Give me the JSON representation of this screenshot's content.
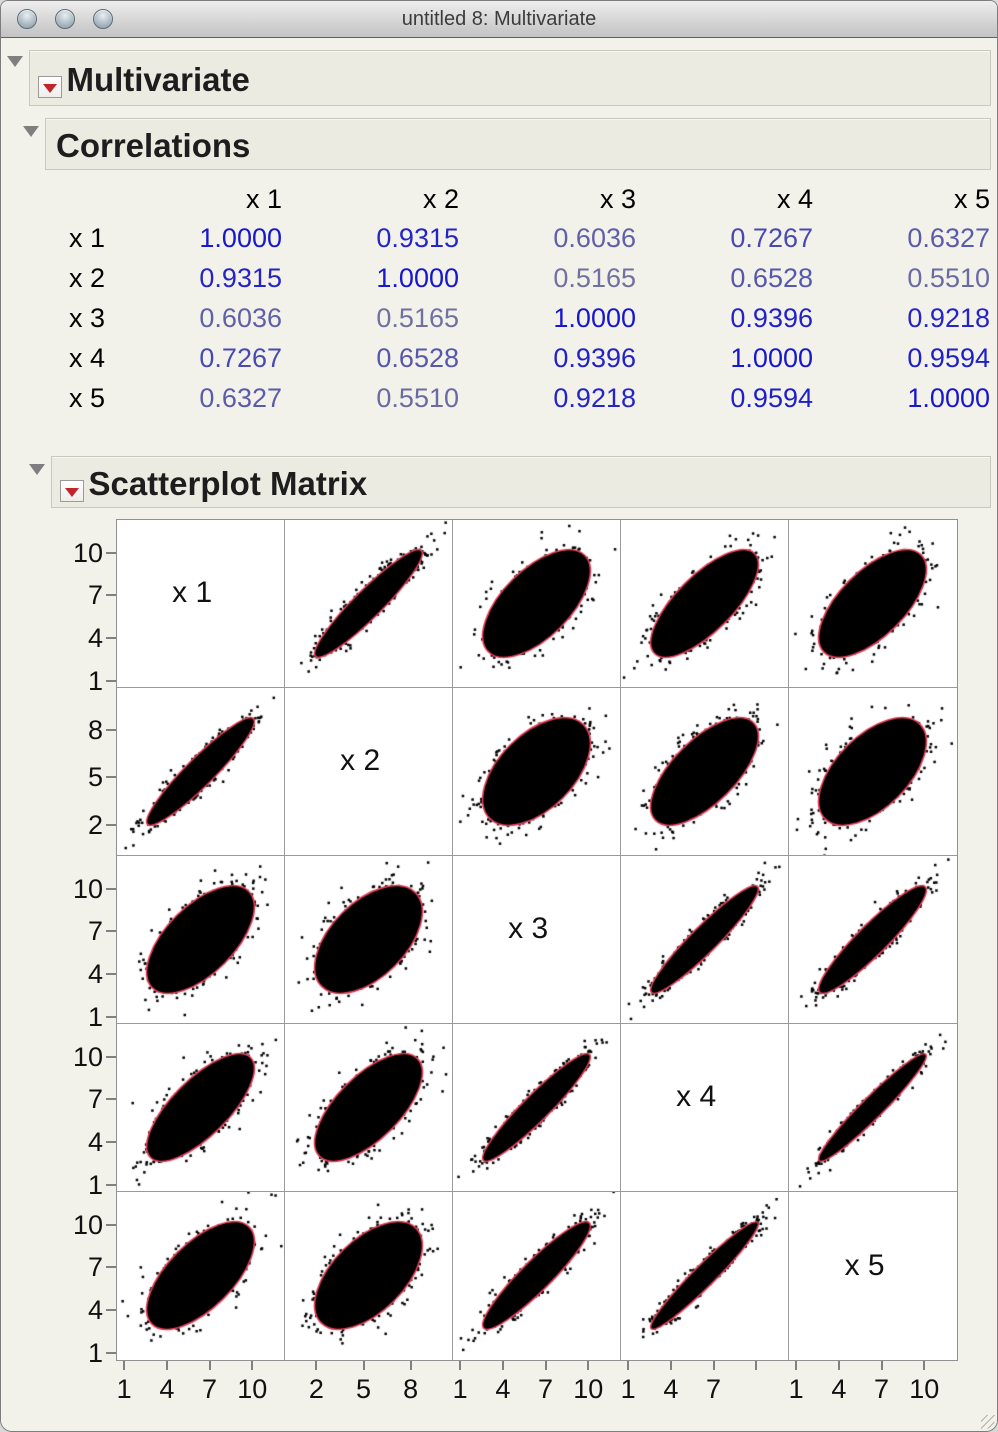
{
  "window": {
    "title": "untitled 8: Multivariate",
    "traffic_light_buttons": [
      "close",
      "minimize",
      "zoom"
    ]
  },
  "sections": {
    "multivariate": {
      "label": "Multivariate",
      "has_red_triangle_menu": true
    },
    "correlations": {
      "label": "Correlations",
      "has_red_triangle_menu": false
    },
    "scatterplot_matrix": {
      "label": "Scatterplot Matrix",
      "has_red_triangle_menu": true
    }
  },
  "icons": {
    "disclosure_triangle_color": "#7f7f7f",
    "red_triangle_menu_color": "#c2242c"
  },
  "chart_data": [
    {
      "type": "table",
      "title": "Correlations",
      "row_labels": [
        "x 1",
        "x 2",
        "x 3",
        "x 4",
        "x 5"
      ],
      "col_labels": [
        "x 1",
        "x 2",
        "x 3",
        "x 4",
        "x 5"
      ],
      "values": [
        [
          "1.0000",
          "0.9315",
          "0.6036",
          "0.7267",
          "0.6327"
        ],
        [
          "0.9315",
          "1.0000",
          "0.5165",
          "0.6528",
          "0.5510"
        ],
        [
          "0.6036",
          "0.5165",
          "1.0000",
          "0.9396",
          "0.9218"
        ],
        [
          "0.7267",
          "0.6528",
          "0.9396",
          "1.0000",
          "0.9594"
        ],
        [
          "0.6327",
          "0.5510",
          "0.9218",
          "0.9594",
          "1.0000"
        ]
      ],
      "value_color_scale": {
        "r_at_0_5": "#73739f",
        "r_at_1_0": "#1717ce"
      }
    },
    {
      "type": "scatter",
      "title": "Scatterplot Matrix",
      "layout": "5x5 matrix, diagonal cells show variable names, legend off, grid off",
      "variables": [
        "x 1",
        "x 2",
        "x 3",
        "x 4",
        "x 5"
      ],
      "correlations": [
        [
          1.0,
          0.9315,
          0.6036,
          0.7267,
          0.6327
        ],
        [
          0.9315,
          1.0,
          0.5165,
          0.6528,
          0.551
        ],
        [
          0.6036,
          0.5165,
          1.0,
          0.9396,
          0.9218
        ],
        [
          0.7267,
          0.6528,
          0.9396,
          1.0,
          0.9594
        ],
        [
          0.6327,
          0.551,
          0.9218,
          0.9594,
          1.0
        ]
      ],
      "cell_content": "dense black point cloud (bivariate normal) with red 95% density ellipse",
      "point_color": "#000000",
      "point_style": "small black squares",
      "ellipse_color": "#e63b55",
      "axes": [
        {
          "variable": "x 1",
          "domain": [
            0.5,
            12.3
          ],
          "ticks": [
            1,
            4,
            7,
            10
          ],
          "x_tick_labels": [
            "1",
            "4",
            "7",
            "10"
          ],
          "y_tick_labels": [
            "1",
            "4",
            "7",
            "10"
          ]
        },
        {
          "variable": "x 2",
          "domain": [
            0.0,
            10.7
          ],
          "ticks": [
            2,
            5,
            8
          ],
          "x_tick_labels": [
            "2",
            "5",
            "8"
          ],
          "y_tick_labels": [
            "2",
            "5",
            "8"
          ]
        },
        {
          "variable": "x 3",
          "domain": [
            0.5,
            12.3
          ],
          "ticks": [
            1,
            4,
            7,
            10
          ],
          "x_tick_labels": [
            "1",
            "4",
            "7",
            "10"
          ],
          "y_tick_labels": [
            "1",
            "4",
            "7",
            "10"
          ]
        },
        {
          "variable": "x 4",
          "domain": [
            0.5,
            12.3
          ],
          "ticks": [
            1,
            4,
            7,
            10
          ],
          "x_tick_labels": [
            "1",
            "4",
            "7",
            ""
          ],
          "y_tick_labels": [
            "1",
            "4",
            "7",
            "10"
          ]
        },
        {
          "variable": "x 5",
          "domain": [
            0.5,
            12.3
          ],
          "ticks": [
            1,
            4,
            7,
            10
          ],
          "x_tick_labels": [
            "1",
            "4",
            "7",
            "10"
          ],
          "y_tick_labels": [
            "1",
            "4",
            "7",
            "10"
          ]
        }
      ]
    }
  ]
}
